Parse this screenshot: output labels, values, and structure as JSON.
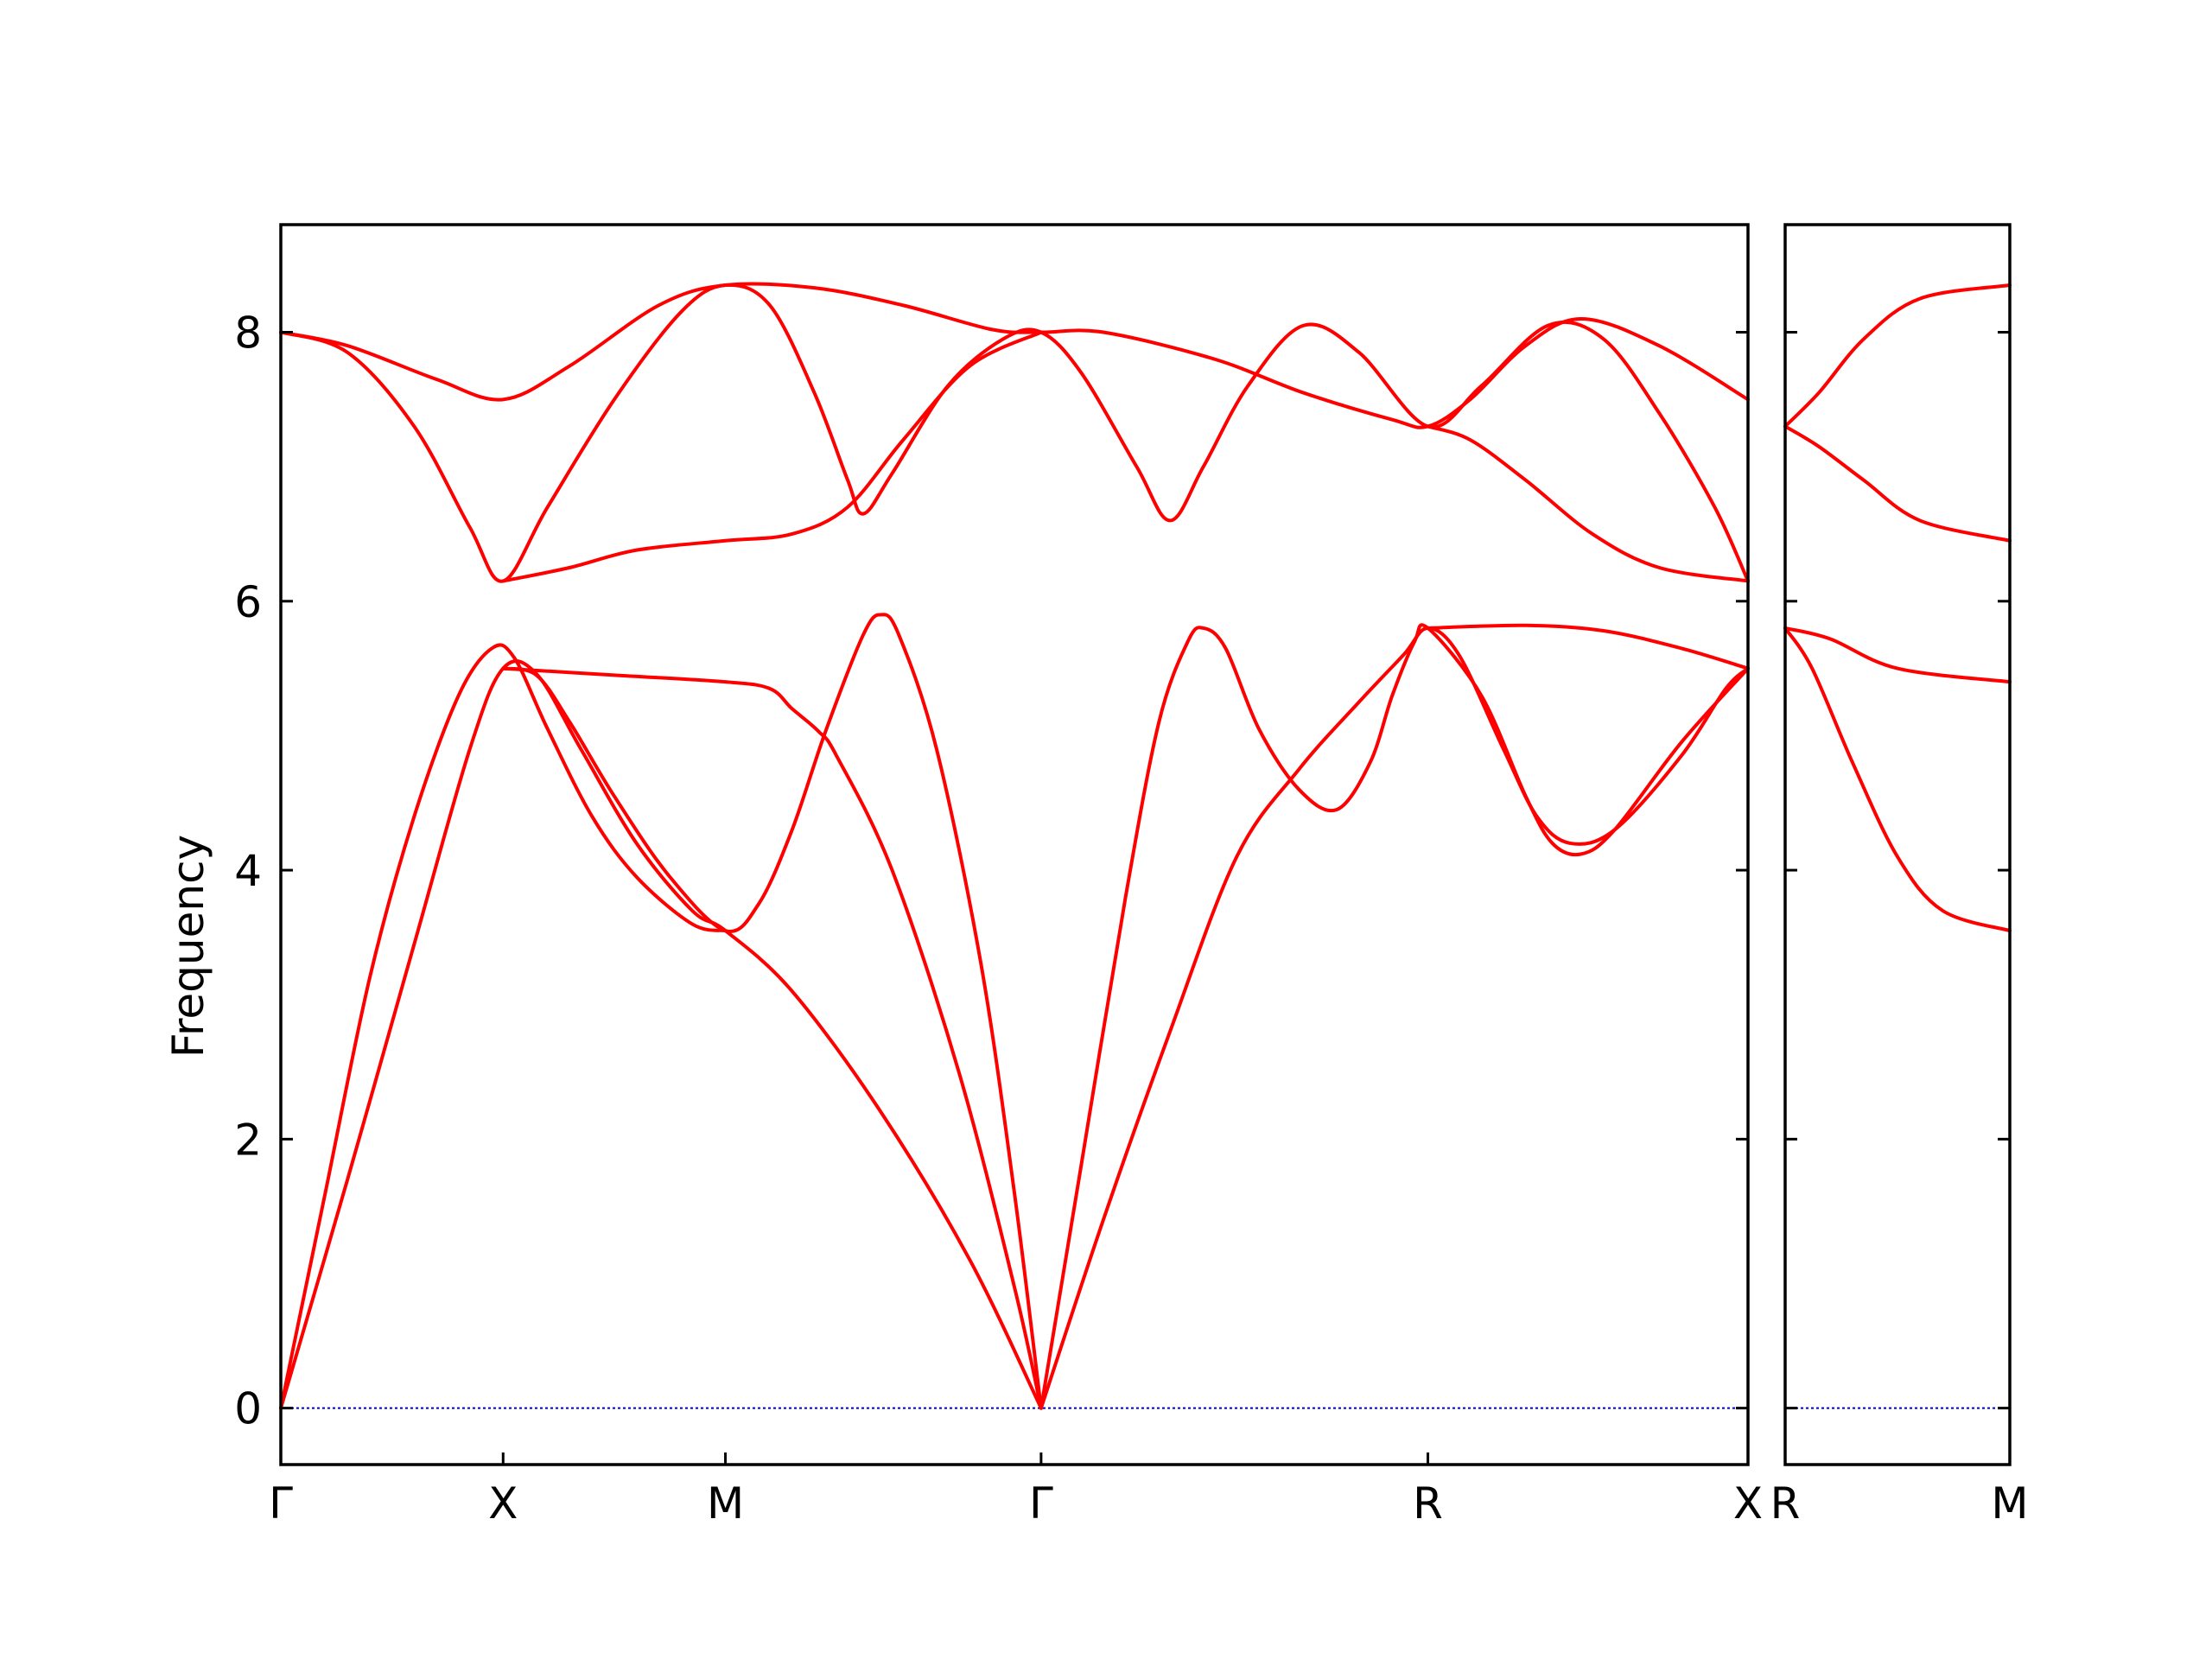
{
  "chart_data": {
    "type": "line",
    "title": "",
    "ylabel": "Frequency",
    "ylim": [
      -0.42,
      8.8
    ],
    "yticks": [
      0,
      2,
      4,
      6,
      8
    ],
    "line_color": "#ff0000",
    "zero_line_color": "#0000cc",
    "grid": false,
    "legend": "none",
    "panels": [
      {
        "xlim": [
          0,
          6.6
        ],
        "xticks": [
          {
            "x": 0,
            "label": "Γ"
          },
          {
            "x": 1,
            "label": "X"
          },
          {
            "x": 2,
            "label": "M"
          },
          {
            "x": 3.42,
            "label": "Γ"
          },
          {
            "x": 5.16,
            "label": "R"
          },
          {
            "x": 6.6,
            "label": "X"
          }
        ],
        "series": [
          {
            "points": [
              [
                0,
                0
              ],
              [
                0.3,
                1.7
              ],
              [
                0.6,
                3.45
              ],
              [
                0.85,
                4.9
              ],
              [
                1,
                5.5
              ],
              [
                1.15,
                5.46
              ],
              [
                1.35,
                4.9
              ],
              [
                1.6,
                4.2
              ],
              [
                1.85,
                3.7
              ],
              [
                2,
                3.55
              ],
              [
                2.3,
                3.1
              ],
              [
                2.7,
                2.2
              ],
              [
                3.1,
                1.1
              ],
              [
                3.42,
                0
              ]
            ]
          },
          {
            "points": [
              [
                0,
                0
              ],
              [
                0.2,
                1.6
              ],
              [
                0.4,
                3.2
              ],
              [
                0.6,
                4.4
              ],
              [
                0.8,
                5.3
              ],
              [
                0.95,
                5.65
              ],
              [
                1.05,
                5.58
              ],
              [
                1.2,
                5.05
              ],
              [
                1.4,
                4.4
              ],
              [
                1.6,
                3.95
              ],
              [
                1.85,
                3.6
              ],
              [
                2,
                3.55
              ]
            ]
          },
          {
            "points": [
              [
                1,
                5.5
              ],
              [
                1.15,
                5.45
              ],
              [
                1.3,
                5.1
              ],
              [
                1.5,
                4.55
              ],
              [
                1.75,
                3.95
              ],
              [
                2,
                3.55
              ],
              [
                2.15,
                3.75
              ],
              [
                2.3,
                4.3
              ],
              [
                2.45,
                5.03
              ],
              [
                2.62,
                5.75
              ],
              [
                2.7,
                5.9
              ],
              [
                2.78,
                5.75
              ],
              [
                2.95,
                4.9
              ],
              [
                3.15,
                3.3
              ],
              [
                3.3,
                1.6
              ],
              [
                3.42,
                0
              ]
            ]
          },
          {
            "points": [
              [
                1,
                5.5
              ],
              [
                1.5,
                5.45
              ],
              [
                2,
                5.4
              ],
              [
                2.2,
                5.35
              ],
              [
                2.3,
                5.2
              ],
              [
                2.42,
                5.03
              ],
              [
                2.5,
                4.85
              ],
              [
                2.75,
                4
              ],
              [
                3.05,
                2.5
              ],
              [
                3.3,
                0.9
              ],
              [
                3.42,
                0
              ]
            ]
          },
          {
            "points": [
              [
                3.42,
                0
              ],
              [
                3.6,
                1.8
              ],
              [
                3.8,
                3.8
              ],
              [
                3.95,
                5.1
              ],
              [
                4.08,
                5.7
              ],
              [
                4.15,
                5.8
              ],
              [
                4.25,
                5.65
              ],
              [
                4.4,
                5.05
              ],
              [
                4.58,
                4.6
              ],
              [
                4.75,
                4.45
              ],
              [
                4.9,
                4.8
              ],
              [
                5,
                5.3
              ],
              [
                5.1,
                5.7
              ],
              [
                5.16,
                5.8
              ],
              [
                5.4,
                5.3
              ],
              [
                5.6,
                4.55
              ],
              [
                5.72,
                4.2
              ],
              [
                5.85,
                4.12
              ],
              [
                6,
                4.3
              ],
              [
                6.3,
                4.95
              ],
              [
                6.6,
                5.5
              ]
            ]
          },
          {
            "points": [
              [
                3.42,
                0
              ],
              [
                3.7,
                1.4
              ],
              [
                4,
                2.8
              ],
              [
                4.3,
                4.1
              ],
              [
                4.58,
                4.75
              ],
              [
                4.85,
                5.25
              ],
              [
                5.05,
                5.6
              ],
              [
                5.16,
                5.8
              ],
              [
                5.3,
                5.6
              ],
              [
                5.5,
                4.9
              ],
              [
                5.65,
                4.4
              ],
              [
                5.8,
                4.2
              ],
              [
                6,
                4.3
              ],
              [
                6.3,
                4.85
              ],
              [
                6.5,
                5.35
              ],
              [
                6.6,
                5.5
              ]
            ]
          },
          {
            "points": [
              [
                5.16,
                5.8
              ],
              [
                5.6,
                5.82
              ],
              [
                5.95,
                5.78
              ],
              [
                6.3,
                5.65
              ],
              [
                6.6,
                5.5
              ]
            ]
          },
          {
            "points": [
              [
                0,
                8
              ],
              [
                0.3,
                7.9
              ],
              [
                0.7,
                7.65
              ],
              [
                1,
                7.5
              ],
              [
                1.3,
                7.75
              ],
              [
                1.7,
                8.2
              ],
              [
                2,
                8.35
              ],
              [
                2.4,
                8.33
              ],
              [
                2.8,
                8.2
              ],
              [
                3.2,
                8.02
              ],
              [
                3.42,
                8
              ],
              [
                3.7,
                8
              ],
              [
                4.2,
                7.8
              ],
              [
                4.6,
                7.55
              ],
              [
                5,
                7.35
              ],
              [
                5.16,
                7.3
              ],
              [
                5.35,
                7.5
              ],
              [
                5.6,
                7.9
              ],
              [
                5.85,
                8.1
              ],
              [
                6.2,
                7.9
              ],
              [
                6.6,
                7.5
              ]
            ]
          },
          {
            "points": [
              [
                0,
                8
              ],
              [
                0.3,
                7.85
              ],
              [
                0.6,
                7.3
              ],
              [
                0.85,
                6.55
              ],
              [
                1,
                6.15
              ],
              [
                1.2,
                6.7
              ],
              [
                1.5,
                7.5
              ],
              [
                1.8,
                8.15
              ],
              [
                2,
                8.35
              ],
              [
                2.2,
                8.2
              ],
              [
                2.4,
                7.55
              ],
              [
                2.55,
                6.9
              ],
              [
                2.62,
                6.65
              ],
              [
                2.75,
                6.95
              ],
              [
                3,
                7.6
              ],
              [
                3.25,
                7.95
              ],
              [
                3.42,
                8
              ],
              [
                3.6,
                7.7
              ],
              [
                3.85,
                7
              ],
              [
                4,
                6.6
              ],
              [
                4.15,
                7
              ],
              [
                4.35,
                7.6
              ],
              [
                4.6,
                8.05
              ],
              [
                4.85,
                7.85
              ],
              [
                5.16,
                7.3
              ],
              [
                5.4,
                7.6
              ],
              [
                5.7,
                8.05
              ],
              [
                5.95,
                7.95
              ],
              [
                6.2,
                7.4
              ],
              [
                6.45,
                6.7
              ],
              [
                6.6,
                6.15
              ]
            ]
          },
          {
            "points": [
              [
                1,
                6.15
              ],
              [
                1.3,
                6.25
              ],
              [
                1.6,
                6.38
              ],
              [
                2,
                6.45
              ],
              [
                2.3,
                6.5
              ],
              [
                2.55,
                6.7
              ],
              [
                2.8,
                7.2
              ],
              [
                3.1,
                7.75
              ],
              [
                3.42,
                8
              ]
            ]
          },
          {
            "points": [
              [
                5.16,
                7.3
              ],
              [
                5.35,
                7.2
              ],
              [
                5.6,
                6.9
              ],
              [
                5.9,
                6.5
              ],
              [
                6.2,
                6.25
              ],
              [
                6.6,
                6.15
              ]
            ]
          }
        ]
      },
      {
        "xlim": [
          0,
          1
        ],
        "xticks": [
          {
            "x": 0,
            "label": "R"
          },
          {
            "x": 1,
            "label": "M"
          }
        ],
        "series": [
          {
            "points": [
              [
                0,
                7.3
              ],
              [
                0.15,
                7.55
              ],
              [
                0.35,
                7.95
              ],
              [
                0.6,
                8.25
              ],
              [
                1,
                8.35
              ]
            ]
          },
          {
            "points": [
              [
                0,
                7.3
              ],
              [
                0.15,
                7.15
              ],
              [
                0.35,
                6.9
              ],
              [
                0.6,
                6.6
              ],
              [
                1,
                6.45
              ]
            ]
          },
          {
            "points": [
              [
                0,
                5.8
              ],
              [
                0.2,
                5.72
              ],
              [
                0.5,
                5.5
              ],
              [
                1,
                5.4
              ]
            ]
          },
          {
            "points": [
              [
                0,
                5.8
              ],
              [
                0.12,
                5.5
              ],
              [
                0.3,
                4.8
              ],
              [
                0.5,
                4.1
              ],
              [
                0.7,
                3.7
              ],
              [
                1,
                3.55
              ]
            ]
          }
        ]
      }
    ]
  }
}
